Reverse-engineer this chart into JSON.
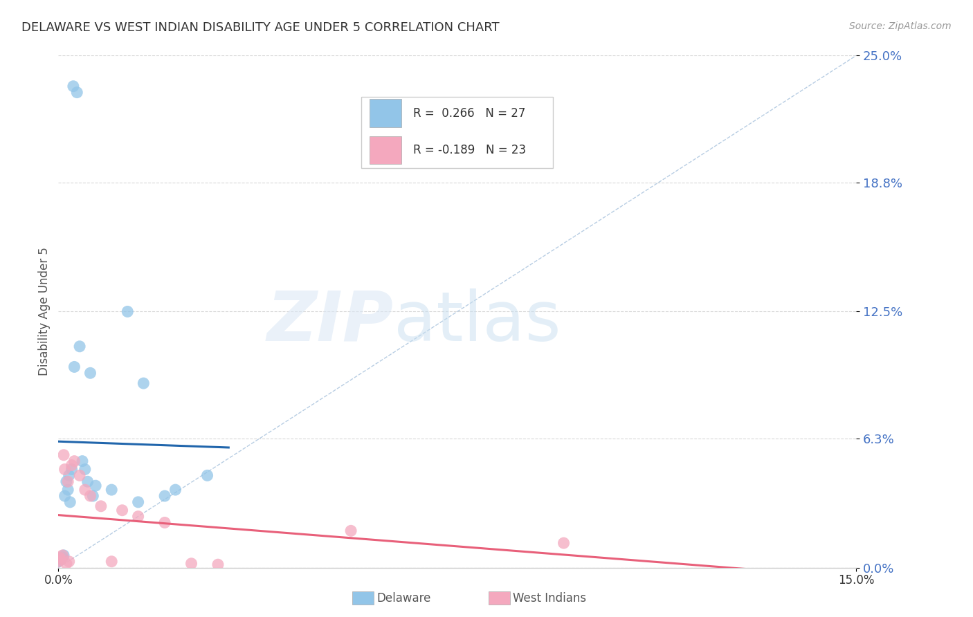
{
  "title": "DELAWARE VS WEST INDIAN DISABILITY AGE UNDER 5 CORRELATION CHART",
  "source": "Source: ZipAtlas.com",
  "ylabel": "Disability Age Under 5",
  "ytick_values": [
    0.0,
    6.3,
    12.5,
    18.8,
    25.0
  ],
  "xlim": [
    0.0,
    15.0
  ],
  "ylim": [
    0.0,
    25.0
  ],
  "watermark_zip": "ZIP",
  "watermark_atlas": "atlas",
  "delaware_color": "#92c5e8",
  "west_indian_color": "#f4a8be",
  "delaware_line_color": "#2166ac",
  "west_indian_line_color": "#e8607a",
  "diagonal_color": "#b0c8e0",
  "del_R": 0.266,
  "del_N": 27,
  "wi_R": -0.189,
  "wi_N": 23,
  "delaware_x": [
    0.28,
    0.35,
    0.0,
    0.05,
    0.08,
    0.1,
    0.12,
    0.15,
    0.18,
    0.2,
    0.22,
    0.25,
    0.3,
    0.4,
    0.45,
    0.5,
    0.55,
    0.6,
    0.65,
    0.7,
    1.0,
    1.3,
    1.5,
    1.6,
    2.0,
    2.2,
    2.8
  ],
  "delaware_y": [
    23.5,
    23.2,
    0.3,
    0.4,
    0.5,
    0.6,
    3.5,
    4.2,
    3.8,
    4.5,
    3.2,
    4.8,
    9.8,
    10.8,
    5.2,
    4.8,
    4.2,
    9.5,
    3.5,
    4.0,
    3.8,
    12.5,
    3.2,
    9.0,
    3.5,
    3.8,
    4.5
  ],
  "west_indian_x": [
    0.0,
    0.02,
    0.05,
    0.08,
    0.1,
    0.12,
    0.15,
    0.18,
    0.2,
    0.3,
    0.4,
    0.5,
    0.6,
    0.8,
    1.0,
    1.2,
    1.5,
    2.0,
    2.5,
    3.0,
    5.5,
    9.5,
    0.25
  ],
  "west_indian_y": [
    0.3,
    0.5,
    0.4,
    0.6,
    5.5,
    4.8,
    0.2,
    4.2,
    0.3,
    5.2,
    4.5,
    3.8,
    3.5,
    3.0,
    0.3,
    2.8,
    2.5,
    2.2,
    0.2,
    0.15,
    1.8,
    1.2,
    5.0
  ]
}
